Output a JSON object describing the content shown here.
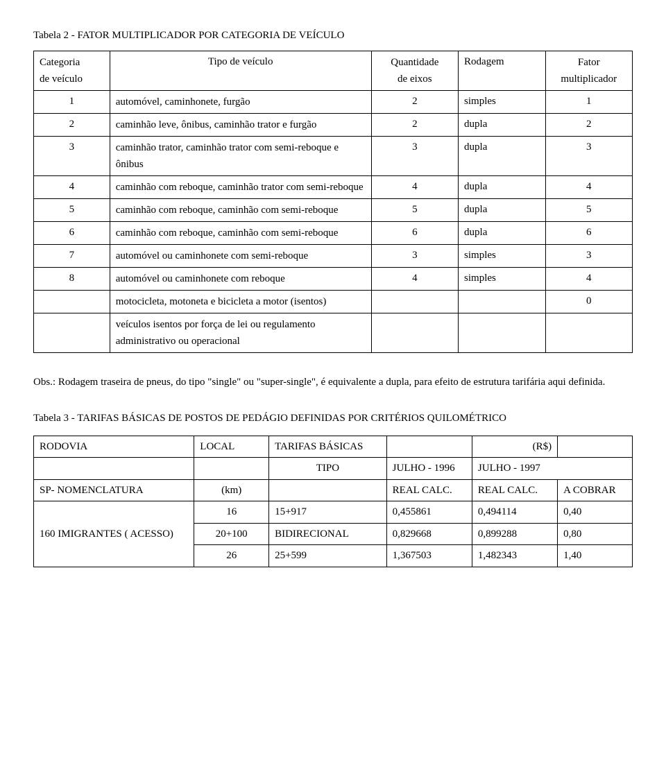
{
  "table2": {
    "title": "Tabela 2 - FATOR MULTIPLICADOR POR CATEGORIA DE VEÍCULO",
    "header": {
      "cat_top": "Categoria",
      "cat_bot": "de veículo",
      "type": "Tipo de veículo",
      "qty_top": "Quantidade",
      "qty_bot": "de eixos",
      "rod": "Rodagem",
      "fac_top": "Fator",
      "fac_bot": "multiplicador"
    },
    "rows": [
      {
        "cat": "1",
        "type": "automóvel, caminhonete, furgão",
        "qty": "2",
        "rod": "simples",
        "fac": "1"
      },
      {
        "cat": "2",
        "type": "caminhão leve, ônibus, caminhão trator e furgão",
        "qty": "2",
        "rod": "dupla",
        "fac": "2"
      },
      {
        "cat": "3",
        "type": "caminhão trator, caminhão trator com semi-reboque e ônibus",
        "qty": "3",
        "rod": "dupla",
        "fac": "3"
      },
      {
        "cat": "4",
        "type": "caminhão com reboque, caminhão trator com semi-reboque",
        "qty": "4",
        "rod": "dupla",
        "fac": "4"
      },
      {
        "cat": "5",
        "type": "caminhão com reboque, caminhão com semi-reboque",
        "qty": "5",
        "rod": "dupla",
        "fac": "5"
      },
      {
        "cat": "6",
        "type": "caminhão com reboque, caminhão com semi-reboque",
        "qty": "6",
        "rod": "dupla",
        "fac": "6"
      },
      {
        "cat": "7",
        "type": "automóvel ou caminhonete com semi-reboque",
        "qty": "3",
        "rod": "simples",
        "fac": "3"
      },
      {
        "cat": "8",
        "type": "automóvel ou caminhonete com reboque",
        "qty": "4",
        "rod": "simples",
        "fac": "4"
      },
      {
        "cat": "",
        "type": "motocicleta, motoneta e bicicleta a motor (isentos)",
        "qty": "",
        "rod": "",
        "fac": "0"
      },
      {
        "cat": "",
        "type": "veículos isentos por força de lei ou regulamento administrativo ou operacional",
        "qty": "",
        "rod": "",
        "fac": ""
      }
    ]
  },
  "obs": "Obs.: Rodagem traseira de pneus, do tipo \"single\" ou \"super-single\", é equivalente a dupla, para efeito de estrutura tarifária aqui definida.",
  "table3": {
    "title": "Tabela 3 - TARIFAS BÁSICAS DE POSTOS DE PEDÁGIO DEFINIDAS POR CRITÉRIOS QUILOMÉTRICO",
    "header": {
      "rodovia": "RODOVIA",
      "local": "LOCAL",
      "tarifas": "TARIFAS BÁSICAS",
      "rs": "(R$)",
      "tipo": "TIPO",
      "jul96": "JULHO - 1996",
      "jul97": "JULHO - 1997",
      "sp": "SP- NOMENCLATURA",
      "km": "(km)",
      "realcalc": "REAL CALC.",
      "acobrar": "A COBRAR"
    },
    "group_label": "160 IMIGRANTES ( ACESSO)",
    "rows": [
      {
        "km": "16",
        "tipo": "15+917",
        "v96": "0,455861",
        "v97": "0,494114",
        "cob": "0,40"
      },
      {
        "km": "20+100",
        "tipo": "BIDIRECIONAL",
        "v96": "0,829668",
        "v97": "0,899288",
        "cob": "0,80"
      },
      {
        "km": "26",
        "tipo": "25+599",
        "v96": "1,367503",
        "v97": "1,482343",
        "cob": "1,40"
      }
    ]
  }
}
